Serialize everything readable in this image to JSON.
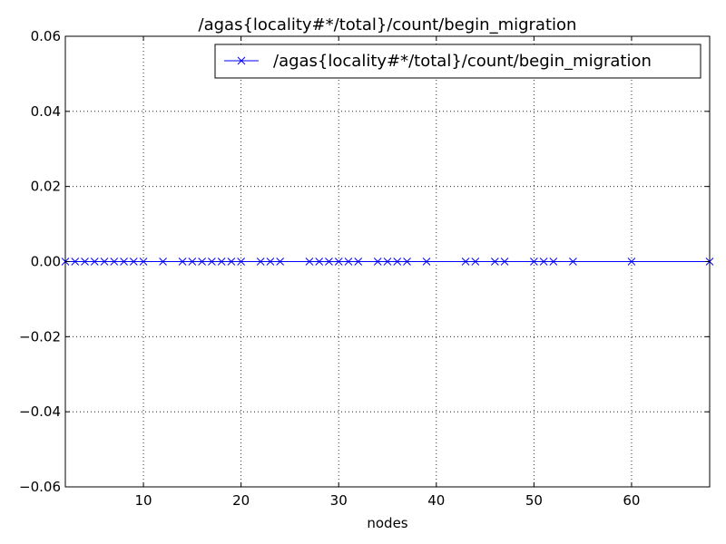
{
  "chart_data": {
    "type": "line",
    "title": "/agas{locality#*/total}/count/begin_migration",
    "xlabel": "nodes",
    "ylabel": "",
    "xlim": [
      2,
      68
    ],
    "ylim": [
      -0.06,
      0.06
    ],
    "x_ticks": [
      10,
      20,
      30,
      40,
      50,
      60
    ],
    "y_ticks": [
      0.06,
      0.04,
      0.02,
      0.0,
      -0.02,
      -0.04,
      -0.06
    ],
    "x_tick_labels": [
      "10",
      "20",
      "30",
      "40",
      "50",
      "60"
    ],
    "y_tick_labels": [
      "0.06",
      "0.04",
      "0.02",
      "0.00",
      "−0.02",
      "−0.04",
      "−0.06"
    ],
    "grid": true,
    "legend_position": "top-right",
    "series": [
      {
        "name": "/agas{locality#*/total}/count/begin_migration",
        "color": "#0000ff",
        "marker": "x",
        "x": [
          2,
          3,
          4,
          5,
          6,
          7,
          8,
          9,
          10,
          12,
          14,
          15,
          16,
          17,
          18,
          19,
          20,
          22,
          23,
          24,
          27,
          28,
          29,
          30,
          31,
          32,
          34,
          35,
          36,
          37,
          39,
          43,
          44,
          46,
          47,
          50,
          51,
          52,
          54,
          60,
          68
        ],
        "y": [
          0,
          0,
          0,
          0,
          0,
          0,
          0,
          0,
          0,
          0,
          0,
          0,
          0,
          0,
          0,
          0,
          0,
          0,
          0,
          0,
          0,
          0,
          0,
          0,
          0,
          0,
          0,
          0,
          0,
          0,
          0,
          0,
          0,
          0,
          0,
          0,
          0,
          0,
          0,
          0,
          0
        ]
      }
    ]
  }
}
